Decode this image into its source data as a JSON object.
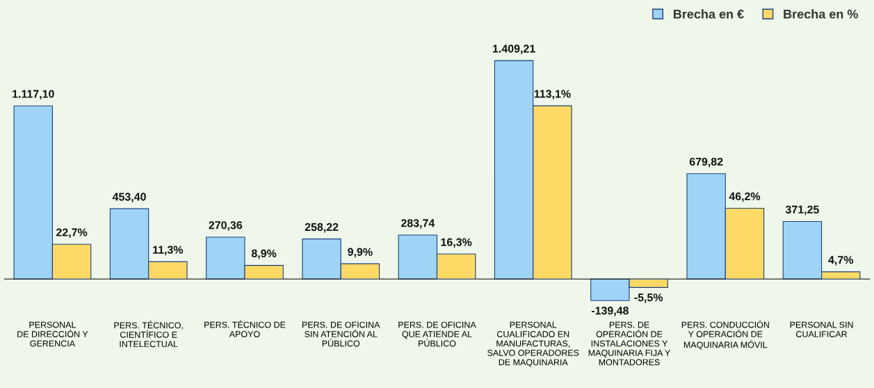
{
  "chart_data": {
    "type": "bar",
    "categories": [
      "PERSONAL\nDE DIRECCIÓN Y\nGERENCIA",
      "PERS. TÉCNICO,\nCIENTÍFICO E\nINTELECTUAL",
      "PERS. TÉCNICO DE\nAPOYO",
      "PERS. DE OFICINA\nSIN ATENCIÓN AL\nPÚBLICO",
      "PERS. DE OFICINA\nQUE ATIENDE AL\nPÚBLICO",
      "PERSONAL\nCUALIFICADO EN\nMANUFACTURAS,\nSALVO OPERADORES\nDE MAQUINARIA",
      "PERS. DE\nOPERACIÓN DE\nINSTALACIONES Y\nMAQUINARIA FIJA Y\nMONTADORES",
      "PERS. CONDUCCIÓN\nY OPERACIÓN DE\nMAQUINARIA MÓVIL",
      "PERSONAL SIN\nCUALIFICAR"
    ],
    "series": [
      {
        "name": "Brecha en €",
        "color": "#9fd4f7",
        "values": [
          1117.1,
          453.4,
          270.36,
          258.22,
          283.74,
          1409.21,
          -139.48,
          679.82,
          371.25
        ],
        "value_labels": [
          "1.117,10",
          "453,40",
          "270,36",
          "258,22",
          "283,74",
          "1.409,21",
          "-139,48",
          "679,82",
          "371,25"
        ]
      },
      {
        "name": "Brecha en %",
        "color": "#ffd966",
        "axis": "y2",
        "values": [
          22.7,
          11.3,
          8.9,
          9.9,
          16.3,
          113.1,
          -5.5,
          46.2,
          4.7
        ],
        "value_labels": [
          "22,7%",
          "11,3%",
          "8,9%",
          "9,9%",
          "16,3%",
          "113,1%",
          "-5,5%",
          "46,2%",
          "4,7%"
        ]
      }
    ],
    "tick_labels": "x",
    "grid": false,
    "legend": "top right"
  }
}
